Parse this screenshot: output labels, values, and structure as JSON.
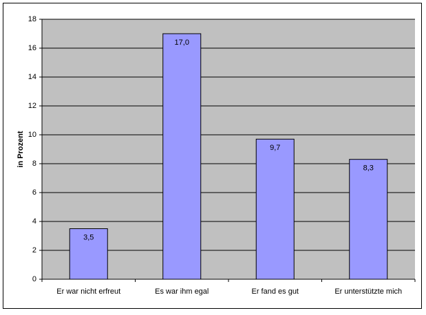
{
  "chart_data": {
    "type": "bar",
    "y_label": "in Prozent",
    "categories": [
      "Er war nicht erfreut",
      "Es war ihm egal",
      "Er fand es gut",
      "Er unterstützte mich"
    ],
    "values": [
      3.5,
      17.0,
      9.7,
      8.3
    ],
    "value_labels": [
      "3,5",
      "17,0",
      "9,7",
      "8,3"
    ],
    "color": "#9999ff",
    "plot_background": "#c0c0c0",
    "ylim": [
      0,
      18
    ],
    "yticks": [
      0,
      2,
      4,
      6,
      8,
      10,
      12,
      14,
      16,
      18
    ],
    "grid": true
  }
}
